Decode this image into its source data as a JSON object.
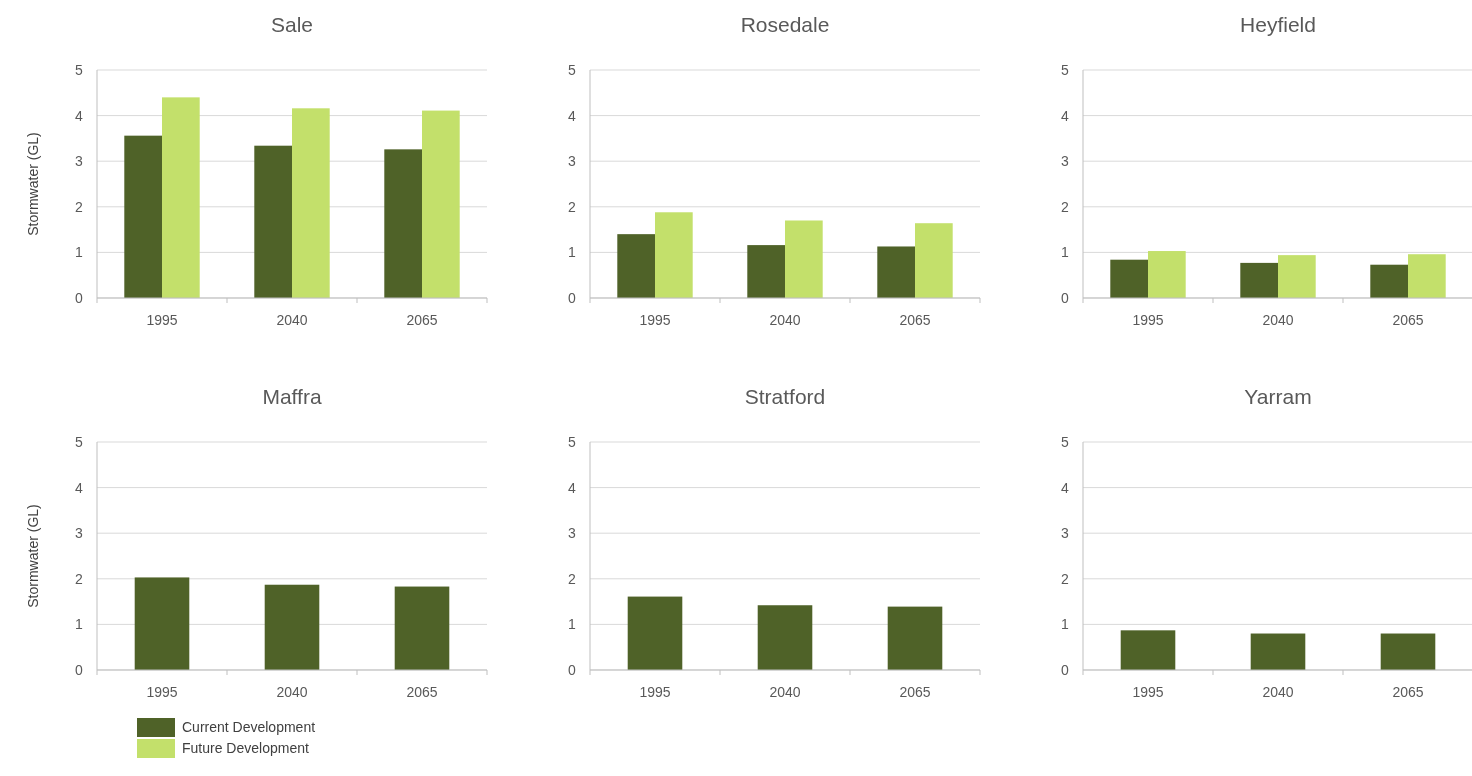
{
  "chart_data": [
    {
      "type": "bar",
      "title": "Sale",
      "ylabel": "Stormwater (GL)",
      "categories": [
        "1995",
        "2040",
        "2065"
      ],
      "series": [
        {
          "color": "#4f6228",
          "values": [
            3.56,
            3.34,
            3.26
          ]
        },
        {
          "color": "#c3e06b",
          "values": [
            4.4,
            4.16,
            4.11
          ]
        }
      ],
      "ylim": [
        0,
        5
      ],
      "yticks": [
        0,
        1,
        2,
        3,
        4,
        5
      ],
      "grid": "y"
    },
    {
      "type": "bar",
      "title": "Rosedale",
      "categories": [
        "1995",
        "2040",
        "2065"
      ],
      "series": [
        {
          "color": "#4f6228",
          "values": [
            1.4,
            1.16,
            1.13
          ]
        },
        {
          "color": "#c3e06b",
          "values": [
            1.88,
            1.7,
            1.64
          ]
        }
      ],
      "ylim": [
        0,
        5
      ],
      "yticks": [
        0,
        1,
        2,
        3,
        4,
        5
      ],
      "grid": "y"
    },
    {
      "type": "bar",
      "title": "Heyfield",
      "categories": [
        "1995",
        "2040",
        "2065"
      ],
      "series": [
        {
          "color": "#4f6228",
          "values": [
            0.84,
            0.77,
            0.73
          ]
        },
        {
          "color": "#c3e06b",
          "values": [
            1.03,
            0.94,
            0.96
          ]
        }
      ],
      "ylim": [
        0,
        5
      ],
      "yticks": [
        0,
        1,
        2,
        3,
        4,
        5
      ],
      "grid": "y"
    },
    {
      "type": "bar",
      "title": "Maffra",
      "ylabel": "Stormwater (GL)",
      "categories": [
        "1995",
        "2040",
        "2065"
      ],
      "series": [
        {
          "name": "Current Development",
          "color": "#4f6228",
          "values": [
            2.03,
            1.87,
            1.83
          ]
        },
        {
          "name": "Future Development",
          "color": "#c3e06b",
          "values": [
            null,
            null,
            null
          ]
        }
      ],
      "ylim": [
        0,
        5
      ],
      "yticks": [
        0,
        1,
        2,
        3,
        4,
        5
      ],
      "grid": "y",
      "legend": "bottom left"
    },
    {
      "type": "bar",
      "title": "Stratford",
      "categories": [
        "1995",
        "2040",
        "2065"
      ],
      "series": [
        {
          "color": "#4f6228",
          "values": [
            1.61,
            1.42,
            1.39
          ]
        }
      ],
      "ylim": [
        0,
        5
      ],
      "yticks": [
        0,
        1,
        2,
        3,
        4,
        5
      ],
      "grid": "y"
    },
    {
      "type": "bar",
      "title": "Yarram",
      "categories": [
        "1995",
        "2040",
        "2065"
      ],
      "series": [
        {
          "color": "#4f6228",
          "values": [
            0.87,
            0.8,
            0.8
          ]
        }
      ],
      "ylim": [
        0,
        5
      ],
      "yticks": [
        0,
        1,
        2,
        3,
        4,
        5
      ],
      "grid": "y"
    }
  ]
}
